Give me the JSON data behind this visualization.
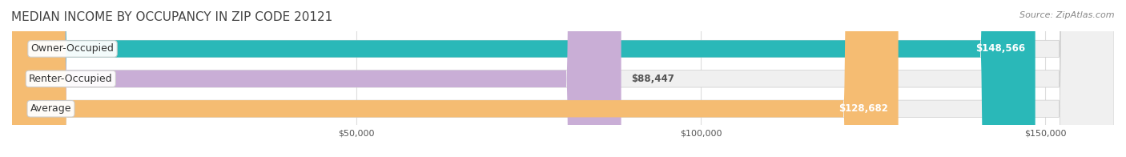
{
  "title": "MEDIAN INCOME BY OCCUPANCY IN ZIP CODE 20121",
  "source": "Source: ZipAtlas.com",
  "categories": [
    "Owner-Occupied",
    "Renter-Occupied",
    "Average"
  ],
  "values": [
    148566,
    88447,
    128682
  ],
  "bar_colors": [
    "#2ab8b8",
    "#c9aed6",
    "#f5bc72"
  ],
  "label_colors": [
    "#ffffff",
    "#555555",
    "#ffffff"
  ],
  "value_labels": [
    "$148,566",
    "$88,447",
    "$128,682"
  ],
  "bar_bg_color": "#f0f0f0",
  "max_value": 160000,
  "tick_values": [
    0,
    50000,
    100000,
    150000
  ],
  "tick_labels": [
    "",
    "$50,000",
    "$100,000",
    "$150,000"
  ],
  "background_color": "#ffffff",
  "title_fontsize": 11,
  "source_fontsize": 8,
  "bar_label_fontsize": 9,
  "value_label_fontsize": 8.5
}
